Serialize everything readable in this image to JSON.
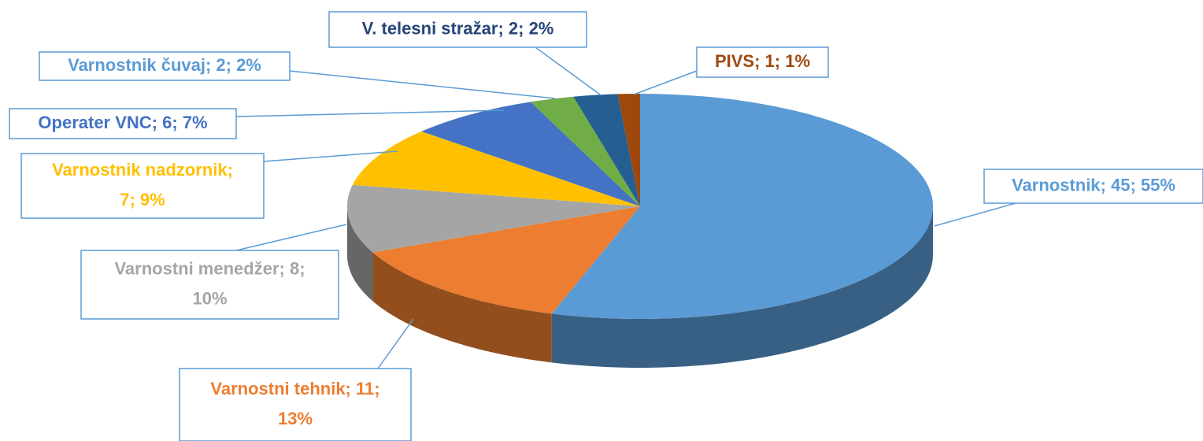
{
  "chart_data": {
    "type": "pie3d",
    "values": [
      45,
      11,
      8,
      7,
      6,
      2,
      2,
      1
    ],
    "value_labels": [
      [
        "Varnostnik; 45; 55%"
      ],
      [
        "Varnostni tehnik; 11;",
        "13%"
      ],
      [
        "Varnostni menedžer; 8;",
        "10%"
      ],
      [
        "Varnostnik nadzornik;",
        "7; 9%"
      ],
      [
        "Operater VNC; 6; 7%"
      ],
      [
        "Varnostnik čuvaj; 2; 2%"
      ],
      [
        "V. telesni stražar; 2; 2%"
      ],
      [
        "PIVS; 1; 1%"
      ]
    ],
    "colors": [
      "#5b9bd5",
      "#ed7d31",
      "#a5a5a5",
      "#ffc000",
      "#4472c4",
      "#70ad47",
      "#255e91",
      "#9e480e"
    ],
    "label_colors": [
      "#5b9bd5",
      "#ed7d31",
      "#a5a5a5",
      "#ffc000",
      "#4472c4",
      "#5b9bd5",
      "#264478",
      "#9e480e"
    ]
  }
}
